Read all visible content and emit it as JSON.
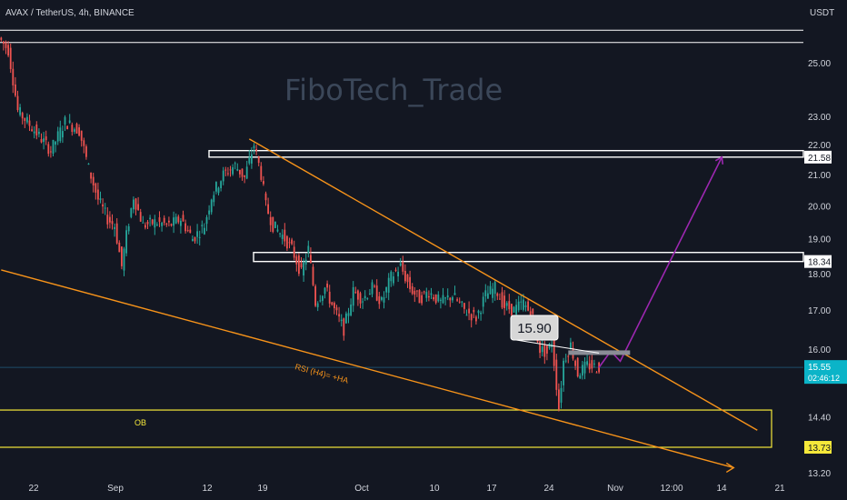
{
  "symbol": {
    "title": "AVAX / TetherUS, 4h, BINANCE",
    "currency": "USDT"
  },
  "watermark": "FiboTech_Trade",
  "colors": {
    "background": "#131722",
    "bull": "#26a69a",
    "bear": "#ef5350",
    "trendline": "#f7931a",
    "projection": "#9c27b0",
    "ob_box": "#f5e83a",
    "resistance_box": "#ffffff",
    "price_line": "#1e4c6a",
    "current_price_bg": "#0bb4c8",
    "ob_price_bg": "#f5e83a"
  },
  "annotations": {
    "rsi_label": "RSI (H4)= +HA",
    "ob_label": "OB",
    "target_callout": "15.90"
  },
  "price_tags": {
    "upper_resistance": "21.58",
    "lower_resistance": "18.34",
    "current_price": "15.55",
    "countdown": "02:46:12",
    "ob_top": "13.73"
  },
  "chart_data": {
    "type": "candlestick",
    "title": "AVAX / TetherUS, 4h, BINANCE",
    "y_axis": {
      "unit": "USDT",
      "scale": "log",
      "range": [
        13.2,
        27.0
      ],
      "ticks": [
        "25.00",
        "23.00",
        "22.00",
        "21.00",
        "20.00",
        "19.00",
        "18.00",
        "17.00",
        "16.00",
        "14.40",
        "13.20"
      ]
    },
    "x_axis": {
      "ticks": [
        "22",
        "Sep",
        "12",
        "19",
        "Oct",
        "10",
        "17",
        "24",
        "Nov",
        "12:00",
        "14",
        "21"
      ]
    },
    "price_path": [
      [
        0,
        26.0
      ],
      [
        4,
        25.5
      ],
      [
        8,
        23.2
      ],
      [
        15,
        22.5
      ],
      [
        22,
        21.8
      ],
      [
        28,
        22.8
      ],
      [
        34,
        22.5
      ],
      [
        38,
        21.2
      ],
      [
        42,
        20.2
      ],
      [
        46,
        19.6
      ],
      [
        49,
        19.4
      ],
      [
        52,
        18.2
      ],
      [
        54,
        19.1
      ],
      [
        57,
        20.3
      ],
      [
        61,
        19.4
      ],
      [
        66,
        19.5
      ],
      [
        72,
        19.4
      ],
      [
        77,
        19.6
      ],
      [
        82,
        19.0
      ],
      [
        87,
        19.4
      ],
      [
        90,
        20.3
      ],
      [
        95,
        21.0
      ],
      [
        100,
        21.3
      ],
      [
        104,
        20.9
      ],
      [
        108,
        22.0
      ],
      [
        111,
        21.0
      ],
      [
        113,
        20.0
      ],
      [
        116,
        19.4
      ],
      [
        120,
        19.1
      ],
      [
        124,
        18.7
      ],
      [
        128,
        18.0
      ],
      [
        131,
        18.7
      ],
      [
        134,
        17.2
      ],
      [
        138,
        17.6
      ],
      [
        142,
        17.0
      ],
      [
        146,
        16.5
      ],
      [
        150,
        17.5
      ],
      [
        154,
        17.3
      ],
      [
        158,
        17.6
      ],
      [
        162,
        17.2
      ],
      [
        166,
        17.9
      ],
      [
        170,
        18.2
      ],
      [
        174,
        17.6
      ],
      [
        178,
        17.3
      ],
      [
        182,
        17.5
      ],
      [
        187,
        17.2
      ],
      [
        192,
        17.4
      ],
      [
        197,
        17.0
      ],
      [
        202,
        16.8
      ],
      [
        206,
        17.4
      ],
      [
        210,
        17.6
      ],
      [
        214,
        17.1
      ],
      [
        218,
        17.0
      ],
      [
        222,
        17.2
      ],
      [
        226,
        16.8
      ],
      [
        229,
        16.0
      ],
      [
        232,
        15.9
      ],
      [
        234,
        16.2
      ],
      [
        237,
        14.6
      ],
      [
        239,
        15.7
      ],
      [
        242,
        16.1
      ],
      [
        245,
        15.4
      ],
      [
        249,
        15.6
      ],
      [
        253,
        15.55
      ]
    ],
    "levels": [
      {
        "name": "top line 1",
        "value": 26.3
      },
      {
        "name": "top line 2",
        "value": 25.8
      },
      {
        "name": "resistance 21.58",
        "value_top": 21.8,
        "value_bottom": 21.58
      },
      {
        "name": "resistance 18.34",
        "value_top": 18.6,
        "value_bottom": 18.34
      },
      {
        "name": "order block",
        "value_top": 14.55,
        "value_bottom": 13.73
      }
    ],
    "trendlines": [
      {
        "name": "upper descending",
        "from": [
          105,
          22.2
        ],
        "to": [
          320,
          14.1
        ]
      },
      {
        "name": "lower descending",
        "from": [
          0,
          18.1
        ],
        "to": [
          310,
          13.3
        ]
      }
    ],
    "projection": [
      [
        253,
        15.55
      ],
      [
        258,
        15.95
      ],
      [
        262,
        15.7
      ],
      [
        305,
        21.58
      ]
    ],
    "current_price": 15.55
  }
}
